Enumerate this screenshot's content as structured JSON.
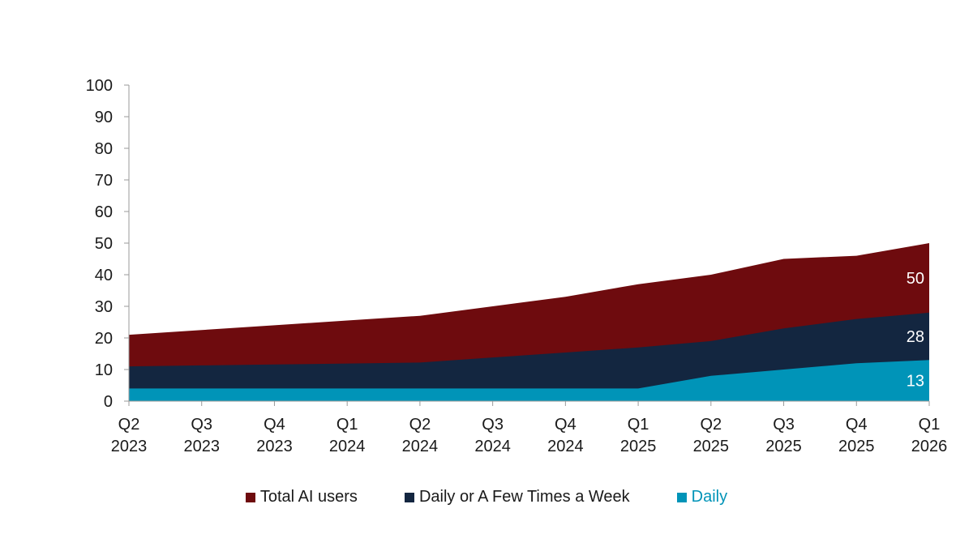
{
  "chart_data": {
    "type": "area",
    "stacked": false,
    "title": "",
    "xlabel": "",
    "ylabel": "",
    "ylim": [
      0,
      100
    ],
    "yticks": [
      0,
      10,
      20,
      30,
      40,
      50,
      60,
      70,
      80,
      90,
      100
    ],
    "grid": false,
    "legend_position": "bottom",
    "categories": [
      [
        "Q2",
        "2023"
      ],
      [
        "Q3",
        "2023"
      ],
      [
        "Q4",
        "2023"
      ],
      [
        "Q1",
        "2024"
      ],
      [
        "Q2",
        "2024"
      ],
      [
        "Q3",
        "2024"
      ],
      [
        "Q4",
        "2024"
      ],
      [
        "Q1",
        "2025"
      ],
      [
        "Q2",
        "2025"
      ],
      [
        "Q3",
        "2025"
      ],
      [
        "Q4",
        "2025"
      ],
      [
        "Q1",
        "2026"
      ]
    ],
    "series": [
      {
        "name": "Total AI users",
        "color": "#6e0b0e",
        "values": [
          21,
          22.5,
          24,
          25.5,
          27,
          30,
          33,
          37,
          40,
          45,
          46,
          50
        ]
      },
      {
        "name": "Daily or A Few Times a Week",
        "color": "#132640",
        "values": [
          11,
          11.3,
          11.6,
          11.9,
          12.2,
          13.8,
          15.4,
          17,
          19,
          23,
          26,
          28
        ]
      },
      {
        "name": "Daily",
        "color": "#0094b8",
        "values": [
          4,
          4,
          4,
          4,
          4,
          4,
          4,
          4,
          8,
          10,
          12,
          13
        ]
      }
    ],
    "end_labels": [
      "50",
      "28",
      "13"
    ]
  }
}
